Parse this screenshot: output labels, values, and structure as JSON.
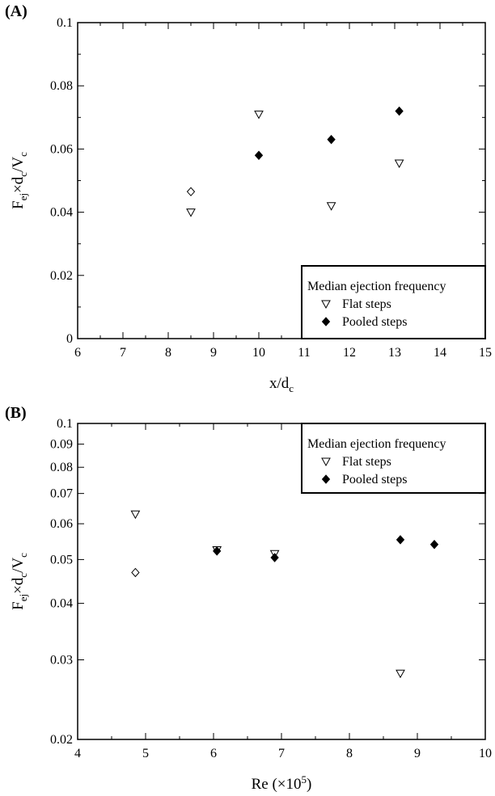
{
  "colors": {
    "ink": "#000000",
    "background": "#ffffff"
  },
  "chart_data": [
    {
      "panel_label": "(A)",
      "type": "scatter",
      "xlabel": "x/d",
      "xlabel_sub": "c",
      "ylabel": {
        "base": "F",
        "sub1": "ej",
        "mid": "×d",
        "sub2": "c",
        "tail": "/V",
        "sub3": "c"
      },
      "xlim": [
        6,
        15
      ],
      "ylim": [
        0,
        0.1
      ],
      "yscale": "linear",
      "x_ticks": [
        "6",
        "7",
        "8",
        "9",
        "10",
        "11",
        "12",
        "13",
        "14",
        "15"
      ],
      "y_ticks": [
        "0",
        "0.02",
        "0.04",
        "0.06",
        "0.08",
        "0.1"
      ],
      "legend": {
        "title": "Median ejection frequency",
        "entries": [
          "Flat steps",
          "Pooled steps"
        ],
        "position": "bottom-right"
      },
      "series": [
        {
          "name": "Flat steps",
          "marker": "triangle-down-open",
          "points": [
            [
              8.5,
              0.04
            ],
            [
              10.0,
              0.071
            ],
            [
              11.6,
              0.042
            ],
            [
              13.1,
              0.0555
            ]
          ]
        },
        {
          "name": "Pooled steps",
          "marker": "diamond-filled",
          "points": [
            [
              10.0,
              0.058
            ],
            [
              11.6,
              0.063
            ],
            [
              13.1,
              0.072
            ]
          ]
        }
      ],
      "extra_points": [
        {
          "marker": "diamond-open",
          "points": [
            [
              8.5,
              0.0465
            ]
          ]
        }
      ]
    },
    {
      "panel_label": "(B)",
      "type": "scatter",
      "xlabel": "Re (×10",
      "xlabel_sup": "5",
      "xlabel_tail": ")",
      "ylabel": {
        "base": "F",
        "sub1": "ej",
        "mid": "×d",
        "sub2": "c",
        "tail": "/V",
        "sub3": "c"
      },
      "xlim": [
        4,
        10
      ],
      "ylim": [
        0.02,
        0.1
      ],
      "yscale": "log",
      "x_ticks": [
        "4",
        "5",
        "6",
        "7",
        "8",
        "9",
        "10"
      ],
      "y_tick_values": [
        0.02,
        0.03,
        0.04,
        0.05,
        0.06,
        0.07,
        0.08,
        0.09,
        0.1
      ],
      "y_ticks": [
        "0.02",
        "0.03",
        "0.04",
        "0.05",
        "0.06",
        "0.07",
        "0.08",
        "0.09",
        "0.1"
      ],
      "legend": {
        "title": "Median ejection frequency",
        "entries": [
          "Flat steps",
          "Pooled steps"
        ],
        "position": "top-right"
      },
      "series": [
        {
          "name": "Flat steps",
          "marker": "triangle-down-open",
          "points": [
            [
              4.85,
              0.063
            ],
            [
              6.05,
              0.0525
            ],
            [
              6.9,
              0.0515
            ],
            [
              8.75,
              0.028
            ]
          ]
        },
        {
          "name": "Pooled steps",
          "marker": "diamond-filled",
          "points": [
            [
              6.05,
              0.0522
            ],
            [
              6.9,
              0.0505
            ],
            [
              8.75,
              0.0553
            ],
            [
              9.25,
              0.054
            ]
          ]
        }
      ],
      "extra_points": [
        {
          "marker": "diamond-open",
          "points": [
            [
              4.85,
              0.0468
            ]
          ]
        }
      ]
    }
  ]
}
